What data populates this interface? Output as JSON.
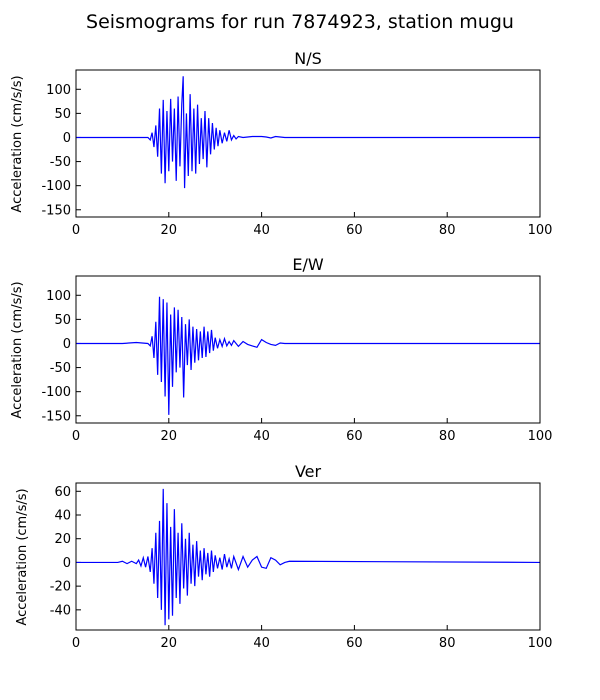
{
  "figure_title": "Seismograms for run 7874923, station mugu",
  "colors": {
    "trace": "#0000ff",
    "frame": "#000000",
    "background": "#ffffff"
  },
  "chart_data": [
    {
      "type": "line",
      "title": "N/S",
      "xlabel": "",
      "ylabel": "Acceleration (cm/s/s)",
      "xlim": [
        0,
        100
      ],
      "ylim": [
        -165,
        140
      ],
      "xticks": [
        0,
        20,
        40,
        60,
        80,
        100
      ],
      "yticks": [
        -150,
        -100,
        -50,
        0,
        50,
        100
      ],
      "grid": false,
      "series": [
        {
          "x": [
            0,
            15.5,
            16.0,
            16.4,
            16.8,
            17.2,
            17.6,
            18.0,
            18.4,
            18.8,
            19.2,
            19.6,
            20.0,
            20.4,
            20.8,
            21.2,
            21.6,
            22.0,
            22.4,
            22.8,
            23.1,
            23.4,
            23.8,
            24.2,
            24.6,
            25.0,
            25.4,
            25.8,
            26.2,
            26.6,
            27.0,
            27.4,
            27.8,
            28.2,
            28.6,
            29.0,
            29.4,
            29.8,
            30.2,
            30.6,
            31.0,
            31.5,
            32.0,
            32.5,
            33.0,
            33.5,
            34.0,
            34.5,
            35.0,
            36.0,
            37.0,
            38.0,
            39.0,
            40.0,
            41.0,
            42.0,
            43.0,
            44.0,
            45.0,
            46.0,
            100
          ],
          "y": [
            0,
            0,
            -5,
            10,
            -20,
            25,
            -40,
            60,
            -75,
            78,
            -95,
            55,
            -70,
            80,
            -50,
            60,
            -90,
            85,
            -60,
            70,
            127,
            -105,
            50,
            -80,
            90,
            -70,
            60,
            -75,
            68,
            -55,
            40,
            -45,
            55,
            -62,
            40,
            -35,
            30,
            -25,
            20,
            -18,
            15,
            -12,
            10,
            -8,
            15,
            -5,
            4,
            -3,
            2,
            0,
            1,
            2,
            2,
            2,
            1,
            -1,
            2,
            1,
            0,
            0,
            0
          ]
        }
      ]
    },
    {
      "type": "line",
      "title": "E/W",
      "xlabel": "",
      "ylabel": "Acceleration (cm/s/s)",
      "xlim": [
        0,
        100
      ],
      "ylim": [
        -165,
        140
      ],
      "xticks": [
        0,
        20,
        40,
        60,
        80,
        100
      ],
      "yticks": [
        -150,
        -100,
        -50,
        0,
        50,
        100
      ],
      "grid": false,
      "series": [
        {
          "x": [
            0,
            10,
            13,
            15.5,
            16.0,
            16.4,
            16.8,
            17.2,
            17.6,
            18.0,
            18.4,
            18.8,
            19.2,
            19.6,
            20.0,
            20.4,
            20.8,
            21.2,
            21.6,
            22.0,
            22.4,
            22.8,
            23.2,
            23.6,
            24.0,
            24.4,
            24.8,
            25.2,
            25.6,
            26.0,
            26.4,
            26.8,
            27.2,
            27.6,
            28.0,
            28.4,
            28.8,
            29.2,
            29.6,
            30.0,
            30.5,
            31.0,
            31.5,
            32.0,
            32.5,
            33.0,
            33.5,
            34.0,
            35.0,
            36.0,
            37.0,
            38.0,
            39.0,
            40.0,
            41.0,
            42.0,
            43.0,
            44.0,
            45.0,
            46.0,
            100
          ],
          "y": [
            0,
            0,
            2,
            0,
            -5,
            15,
            -30,
            45,
            -65,
            97,
            -80,
            92,
            -110,
            85,
            -148,
            60,
            -90,
            75,
            -60,
            70,
            -50,
            55,
            -112,
            40,
            -45,
            50,
            -55,
            35,
            -40,
            30,
            -35,
            25,
            -30,
            35,
            -28,
            25,
            -20,
            28,
            -15,
            12,
            -10,
            8,
            -6,
            10,
            -5,
            4,
            -4,
            6,
            -6,
            4,
            -2,
            -5,
            -8,
            8,
            2,
            -2,
            -4,
            1,
            0,
            0,
            0
          ]
        }
      ]
    },
    {
      "type": "line",
      "title": "Ver",
      "xlabel": "",
      "ylabel": "Acceleration (cm/s/s)",
      "xlim": [
        0,
        100
      ],
      "ylim": [
        -57,
        67
      ],
      "xticks": [
        0,
        20,
        40,
        60,
        80,
        100
      ],
      "yticks": [
        -40,
        -20,
        0,
        20,
        40,
        60
      ],
      "grid": false,
      "series": [
        {
          "x": [
            0,
            9,
            10,
            11,
            12,
            13,
            13.5,
            14,
            14.5,
            15,
            15.5,
            16.0,
            16.4,
            16.8,
            17.2,
            17.6,
            18.0,
            18.4,
            18.8,
            19.2,
            19.6,
            20.0,
            20.4,
            20.8,
            21.2,
            21.6,
            22.0,
            22.4,
            22.8,
            23.2,
            23.6,
            24.0,
            24.4,
            24.8,
            25.2,
            25.6,
            26.0,
            26.4,
            26.8,
            27.2,
            27.6,
            28.0,
            28.4,
            28.8,
            29.2,
            29.6,
            30.0,
            30.5,
            31.0,
            31.5,
            32.0,
            32.5,
            33.0,
            33.5,
            34.0,
            35.0,
            36.0,
            37.0,
            38.0,
            39.0,
            40.0,
            41.0,
            42.0,
            43.0,
            44.0,
            45.0,
            46.0,
            100
          ],
          "y": [
            0,
            0,
            1,
            -1,
            1,
            -1,
            2,
            -3,
            4,
            -4,
            5,
            -8,
            12,
            -18,
            25,
            -30,
            35,
            -40,
            62,
            -53,
            50,
            -48,
            30,
            -45,
            45,
            -30,
            25,
            -35,
            33,
            -22,
            20,
            -28,
            25,
            -18,
            15,
            -20,
            18,
            -12,
            10,
            -15,
            12,
            -10,
            8,
            -12,
            10,
            -8,
            6,
            -5,
            4,
            -6,
            7,
            -4,
            3,
            -5,
            5,
            -6,
            5,
            -4,
            2,
            5,
            -4,
            -5,
            4,
            2,
            -2,
            0,
            1,
            0
          ]
        }
      ]
    }
  ]
}
